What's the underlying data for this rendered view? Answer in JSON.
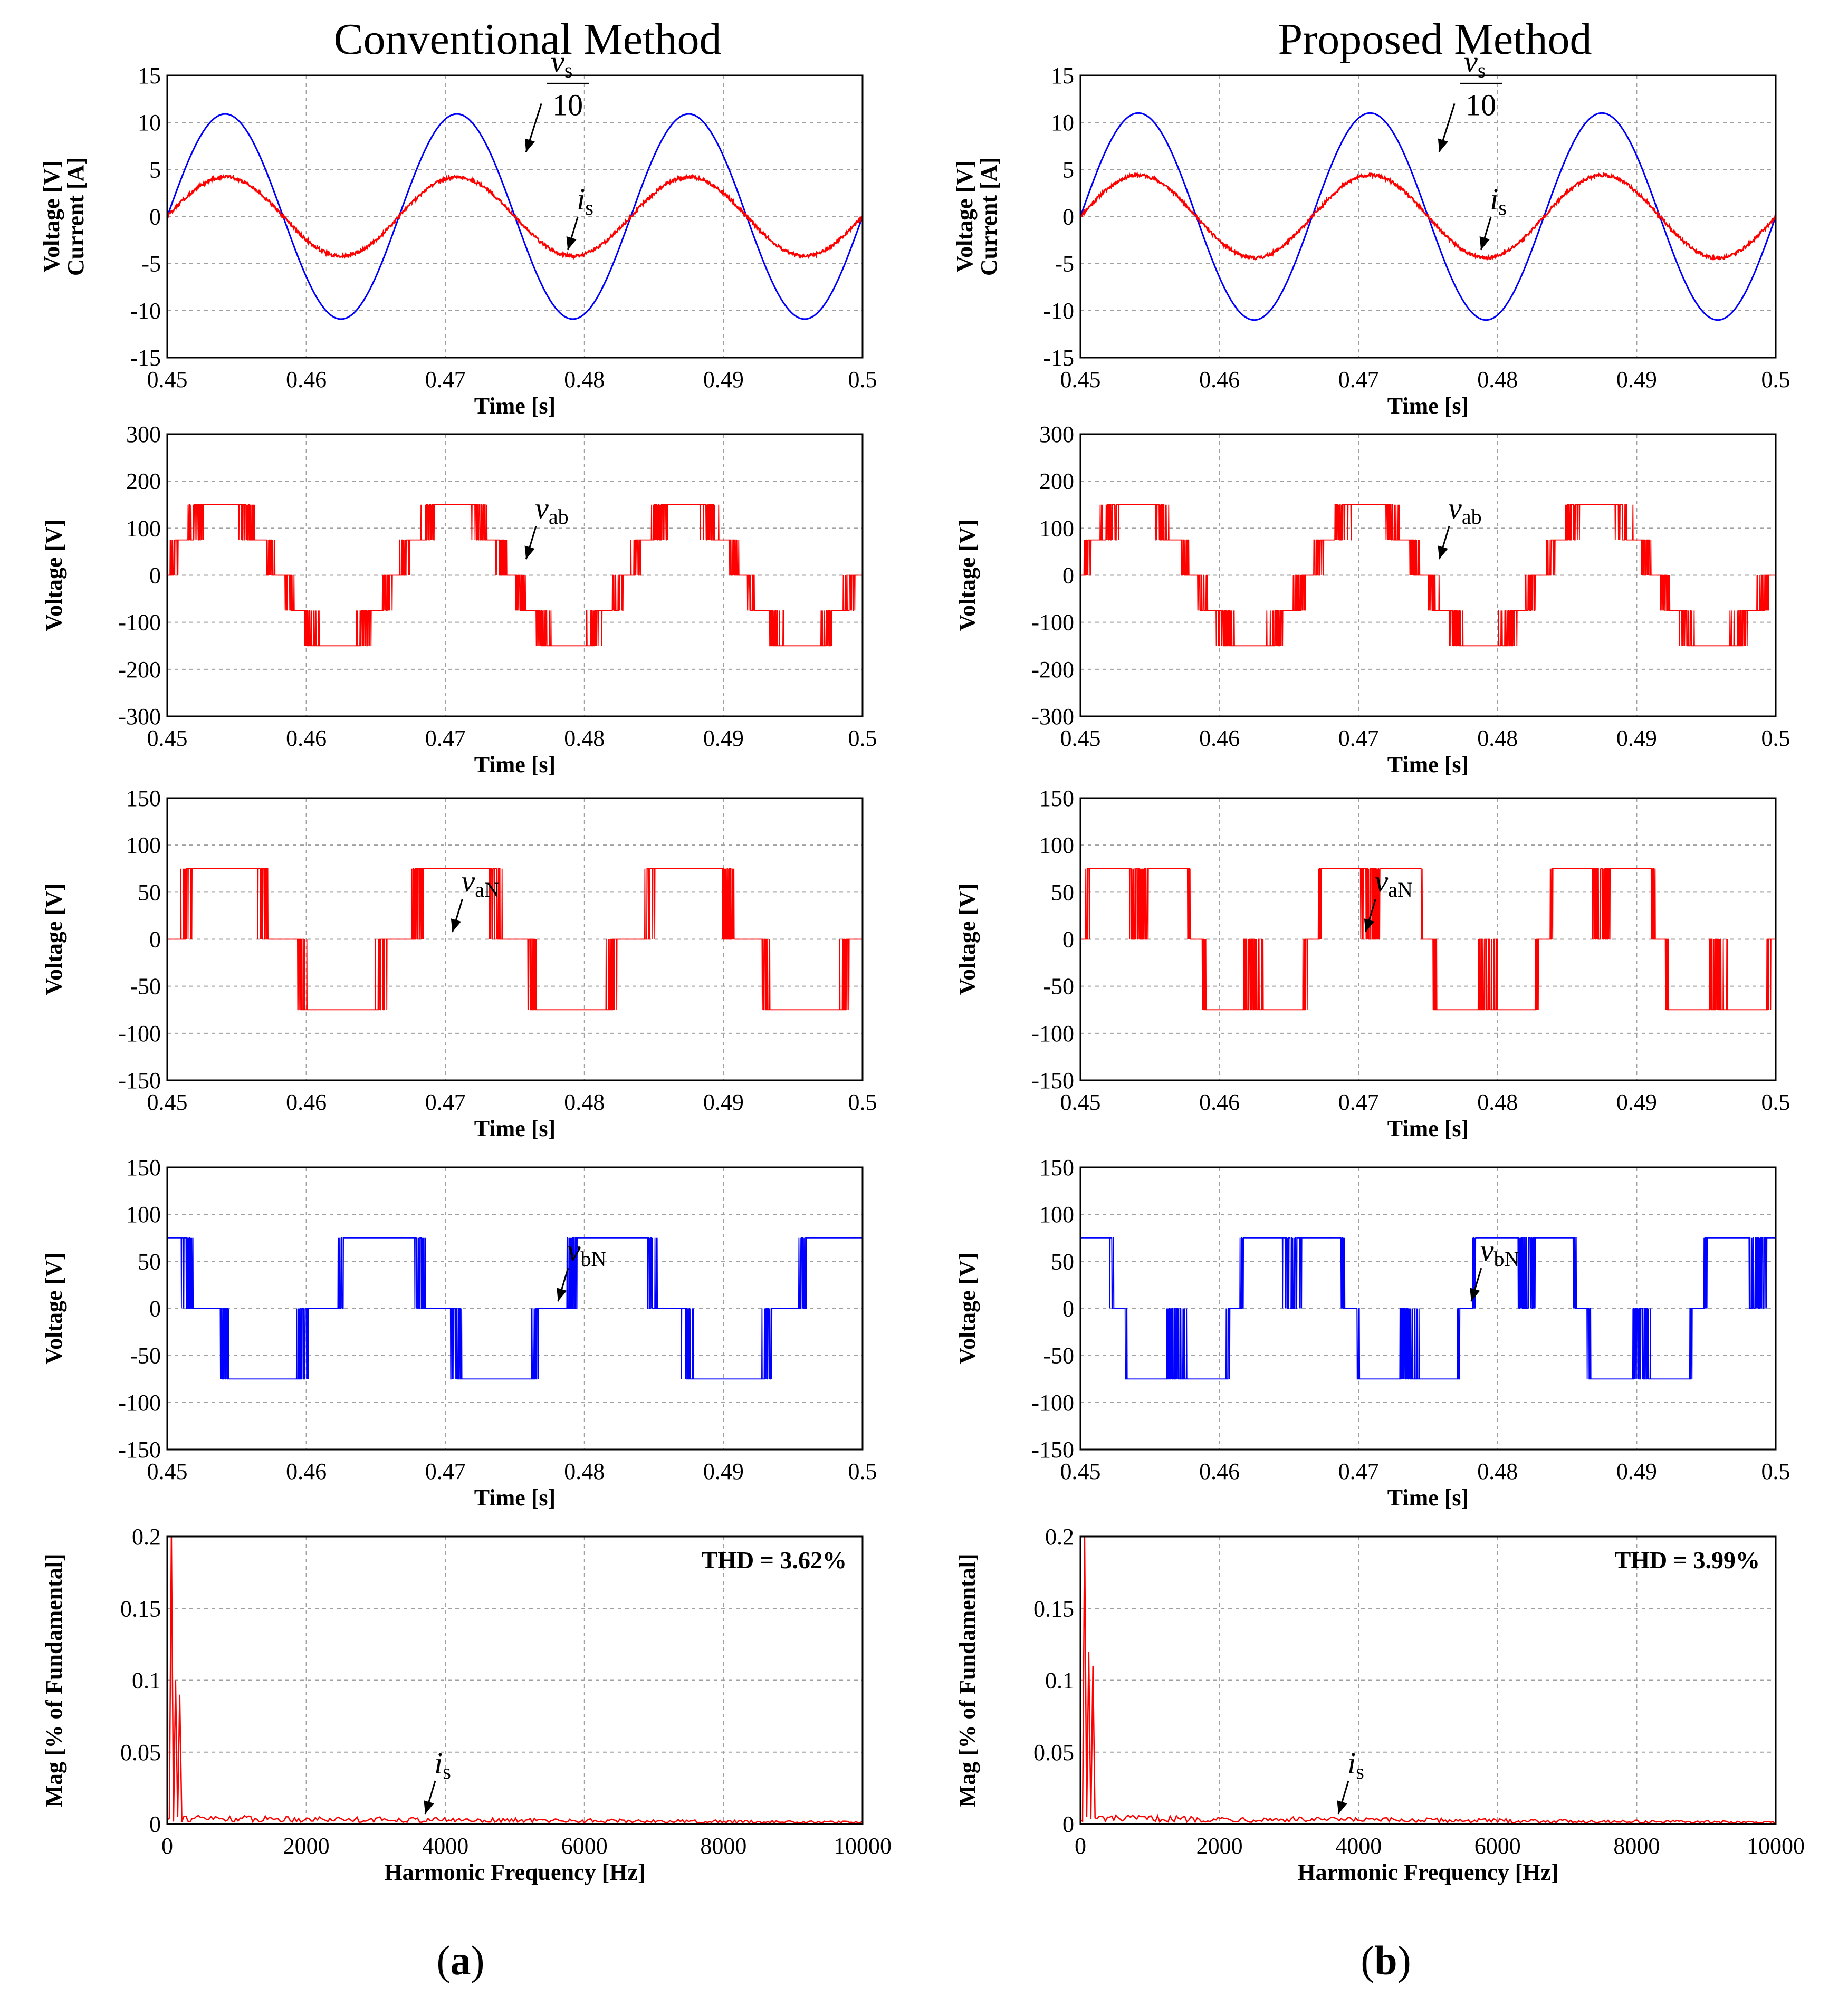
{
  "columns": [
    {
      "title": "Conventional Method",
      "caption_open": "(",
      "caption_letter": "a",
      "caption_close": ")"
    },
    {
      "title": "Proposed Method",
      "caption_open": "(",
      "caption_letter": "b",
      "caption_close": ")"
    }
  ],
  "colors": {
    "red": "#ff0000",
    "blue": "#0000ff",
    "grid": "#a0a0a0",
    "axis": "#000000"
  },
  "chart_data": [
    {
      "type": "line",
      "panel": "supply",
      "ylabel": [
        "Voltage [V]",
        "Current [A]"
      ],
      "xlabel": "Time [s]",
      "xlim": [
        0.45,
        0.5
      ],
      "ylim": [
        -15,
        15
      ],
      "xticks": [
        "0.45",
        "0.46",
        "0.47",
        "0.48",
        "0.49",
        "0.5"
      ],
      "yticks": [
        "15",
        "10",
        "5",
        "0",
        "-5",
        "-10",
        "-15"
      ],
      "series": [
        {
          "name": "vs/10",
          "color": "blue",
          "amplitude": 10.9,
          "frequency_hz": 60,
          "start_time": 0.45
        },
        {
          "name": "is",
          "color": "red",
          "amplitude": 4.2,
          "frequency_hz": 60,
          "start_time": 0.45
        }
      ],
      "annotations": [
        {
          "var": "v",
          "sub": "s",
          "frac_den": "10",
          "at_x": 0.4755,
          "at_y": 6.4
        },
        {
          "var": "i",
          "sub": "s",
          "at_x": 0.4785,
          "at_y": -4.0
        }
      ],
      "methods": [
        {
          "column": 0,
          "series_amplitudes": [
            10.9,
            4.2
          ]
        },
        {
          "column": 1,
          "series_amplitudes": [
            11.0,
            4.4
          ]
        }
      ]
    },
    {
      "type": "line",
      "panel": "vab",
      "ylabel": [
        "Voltage [V]"
      ],
      "xlabel": "Time [s]",
      "xlim": [
        0.45,
        0.5
      ],
      "ylim": [
        -300,
        300
      ],
      "xticks": [
        "0.45",
        "0.46",
        "0.47",
        "0.48",
        "0.49",
        "0.5"
      ],
      "yticks": [
        "300",
        "200",
        "100",
        "0",
        "-100",
        "-200",
        "-300"
      ],
      "series": [
        {
          "name": "vab",
          "color": "red",
          "levels": [
            -150,
            -75,
            0,
            75,
            150
          ],
          "frequency_hz": 60
        }
      ],
      "annotations": [
        {
          "var": "v",
          "sub": "ab",
          "at_x": 0.4755,
          "at_y": 25
        }
      ],
      "methods": [
        {
          "column": 0
        },
        {
          "column": 1
        }
      ]
    },
    {
      "type": "line",
      "panel": "vaN",
      "ylabel": [
        "Voltage [V]"
      ],
      "xlabel": "Time [s]",
      "xlim": [
        0.45,
        0.5
      ],
      "ylim": [
        -150,
        150
      ],
      "xticks": [
        "0.45",
        "0.46",
        "0.47",
        "0.48",
        "0.49",
        "0.5"
      ],
      "yticks": [
        "150",
        "100",
        "50",
        "0",
        "-50",
        "-100",
        "-150"
      ],
      "series": [
        {
          "name": "vaN",
          "color": "red",
          "levels": [
            -75,
            0,
            75
          ],
          "frequency_hz": 60
        }
      ],
      "annotations": [
        {
          "var": "v",
          "sub": "aN",
          "at_x": 0.4702,
          "at_y": 3
        }
      ],
      "methods": [
        {
          "column": 0
        },
        {
          "column": 1
        }
      ]
    },
    {
      "type": "line",
      "panel": "vbN",
      "ylabel": [
        "Voltage [V]"
      ],
      "xlabel": "Time [s]",
      "xlim": [
        0.45,
        0.5
      ],
      "ylim": [
        -150,
        150
      ],
      "xticks": [
        "0.45",
        "0.46",
        "0.47",
        "0.48",
        "0.49",
        "0.5"
      ],
      "yticks": [
        "150",
        "100",
        "50",
        "0",
        "-50",
        "-100",
        "-150"
      ],
      "series": [
        {
          "name": "vbN",
          "color": "blue",
          "levels": [
            -75,
            0,
            75
          ],
          "frequency_hz": 60
        }
      ],
      "annotations": [
        {
          "var": "v",
          "sub": "bN",
          "at_x": 0.4778,
          "at_y": 3
        }
      ],
      "methods": [
        {
          "column": 0
        },
        {
          "column": 1
        }
      ]
    },
    {
      "type": "line",
      "panel": "spectrum",
      "ylabel": [
        "Mag [% of Fundamental]"
      ],
      "xlabel": "Harmonic Frequency [Hz]",
      "xlim": [
        0,
        10000
      ],
      "ylim": [
        0,
        0.2
      ],
      "xticks": [
        "0",
        "2000",
        "4000",
        "6000",
        "8000",
        "10000"
      ],
      "yticks": [
        "0.2",
        "0.15",
        "0.1",
        "0.05",
        "0"
      ],
      "series": [
        {
          "name": "is spectrum",
          "color": "red"
        }
      ],
      "annotations": [
        {
          "var": "i",
          "sub": "s",
          "at_x": 3650,
          "at_y": 0.004
        }
      ],
      "methods": [
        {
          "column": 0,
          "thd": "THD = 3.62%",
          "peaks": [
            {
              "f": 60,
              "mag": 0.2
            },
            {
              "f": 120,
              "mag": 0.1
            },
            {
              "f": 180,
              "mag": 0.09
            }
          ]
        },
        {
          "column": 1,
          "thd": "THD = 3.99%",
          "peaks": [
            {
              "f": 60,
              "mag": 0.2
            },
            {
              "f": 120,
              "mag": 0.12
            },
            {
              "f": 180,
              "mag": 0.11
            }
          ]
        }
      ]
    }
  ]
}
